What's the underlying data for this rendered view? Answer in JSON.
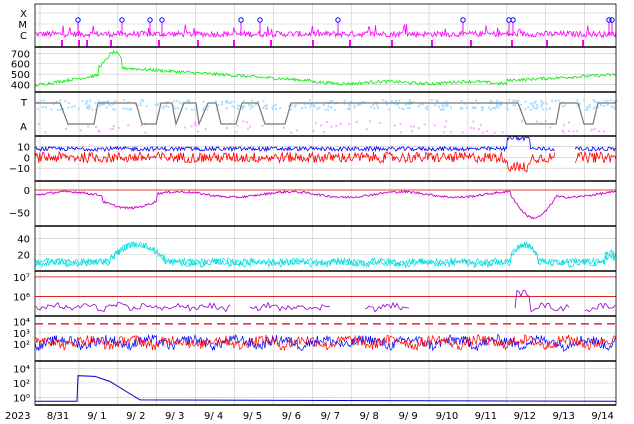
{
  "chart_data": {
    "type": "line",
    "start_year": "2023",
    "x_ticks": [
      "8/31",
      "9/ 1",
      "9/ 2",
      "9/ 3",
      "9/ 4",
      "9/ 5",
      "9/ 6",
      "9/ 7",
      "9/ 8",
      "9/ 9",
      "9/10",
      "9/11",
      "9/12",
      "9/13",
      "9/14"
    ],
    "panels": [
      {
        "id": "xray_class",
        "y_ticks": [
          "X",
          "M",
          "C"
        ],
        "series": [
          {
            "color": "#ff00ff"
          }
        ],
        "flare_markers": 12
      },
      {
        "id": "speed",
        "y_ticks": [
          "700",
          "600",
          "500",
          "400"
        ],
        "ylim": [
          330,
          760
        ],
        "series": [
          {
            "color": "#00ee00"
          }
        ],
        "peak_value": 720,
        "peak_day": 1.9
      },
      {
        "id": "polarity",
        "y_ticks": [
          "T",
          "A"
        ],
        "series": [
          {
            "color": "#aaddff"
          },
          {
            "color": "#ffaaff"
          },
          {
            "color": "#777777"
          }
        ]
      },
      {
        "id": "bz_bt",
        "y_ticks": [
          "10",
          "0",
          "−10"
        ],
        "ylim": [
          -22,
          20
        ],
        "series": [
          {
            "color": "#0000ff"
          },
          {
            "color": "#ff0000"
          }
        ]
      },
      {
        "id": "dst",
        "y_ticks": [
          "0",
          "−50"
        ],
        "ylim": [
          -80,
          20
        ],
        "series": [
          {
            "color": "#cc00cc"
          }
        ],
        "min_value": -62,
        "min_day": 12.7
      },
      {
        "id": "kp_like",
        "y_ticks": [
          "40",
          "20"
        ],
        "ylim": [
          0,
          55
        ],
        "series": [
          {
            "color": "#00dddd"
          }
        ]
      },
      {
        "id": "electron_flux",
        "y_ticks": [
          "10⁷",
          "10⁶"
        ],
        "ylim": [
          5.0,
          7.3
        ],
        "log": true,
        "series": [
          {
            "color": "#9900cc"
          }
        ],
        "threshold_lines": [
          7,
          6
        ]
      },
      {
        "id": "proton_flux",
        "y_ticks": [
          "10⁴",
          "10³",
          "10²"
        ],
        "ylim": [
          0.5,
          4.5
        ],
        "log": true,
        "series": [
          {
            "color": "#0000ff"
          },
          {
            "color": "#ff0000"
          }
        ],
        "threshold": 4
      },
      {
        "id": "high_energy",
        "y_ticks": [
          "10⁴",
          "10²",
          "10⁰"
        ],
        "ylim": [
          -1,
          5
        ],
        "log": true,
        "series": [
          {
            "color": "#0000cc"
          }
        ],
        "event_start_day": 1.05,
        "event_value": 1000
      }
    ]
  }
}
